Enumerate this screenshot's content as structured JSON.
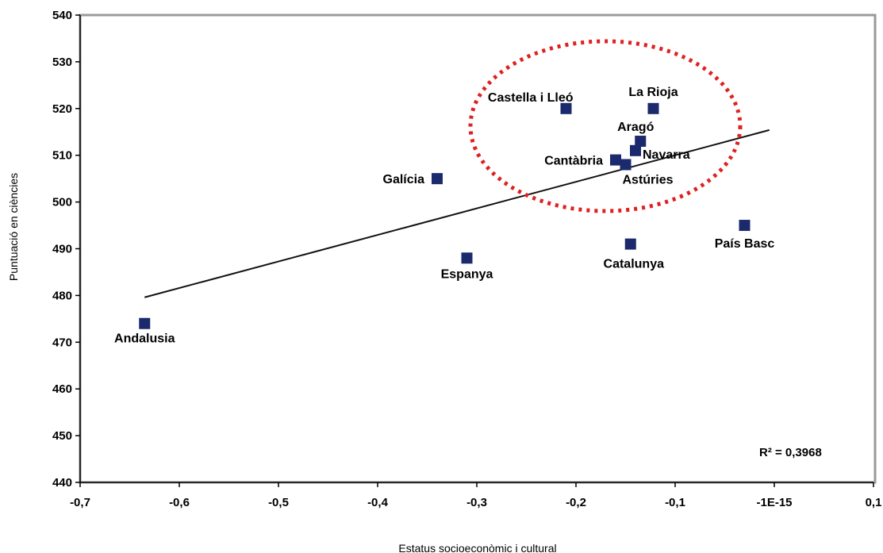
{
  "chart_data": {
    "type": "scatter",
    "title": "",
    "xlabel": "Estatus socioeconòmic i cultural",
    "ylabel": "Puntuació en ciències",
    "xlim": [
      -0.7,
      0.1
    ],
    "ylim": [
      440,
      540
    ],
    "x_ticks": [
      "-0,7",
      "-0,6",
      "-0,5",
      "-0,4",
      "-0,3",
      "-0,2",
      "-0,1",
      "-1E-15",
      "0,1"
    ],
    "y_ticks": [
      "440",
      "450",
      "460",
      "470",
      "480",
      "490",
      "500",
      "510",
      "520",
      "530",
      "540"
    ],
    "grid": false,
    "legend": false,
    "marker_color": "#1a2a6c",
    "series": [
      {
        "points": [
          {
            "label": "Andalusia",
            "x": -0.635,
            "y": 474
          },
          {
            "label": "Espanya",
            "x": -0.31,
            "y": 488
          },
          {
            "label": "Galícia",
            "x": -0.34,
            "y": 505
          },
          {
            "label": "Castella i Lleó",
            "x": -0.21,
            "y": 520
          },
          {
            "label": "La Rioja",
            "x": -0.122,
            "y": 520
          },
          {
            "label": "Aragó",
            "x": -0.135,
            "y": 513
          },
          {
            "label": "Navarra",
            "x": -0.14,
            "y": 511
          },
          {
            "label": "Cantàbria",
            "x": -0.16,
            "y": 509
          },
          {
            "label": "Astúries",
            "x": -0.15,
            "y": 508
          },
          {
            "label": "Catalunya",
            "x": -0.145,
            "y": 491
          },
          {
            "label": "País Basc",
            "x": -0.03,
            "y": 495
          }
        ]
      }
    ],
    "trendline": {
      "x_start": -0.635,
      "y_start": 479.6,
      "x_end": -0.005,
      "y_end": 515.4
    },
    "r_squared_label": "R² = 0,3968",
    "annotation": {
      "shape": "dashed-ellipse",
      "color": "#e02020"
    }
  }
}
